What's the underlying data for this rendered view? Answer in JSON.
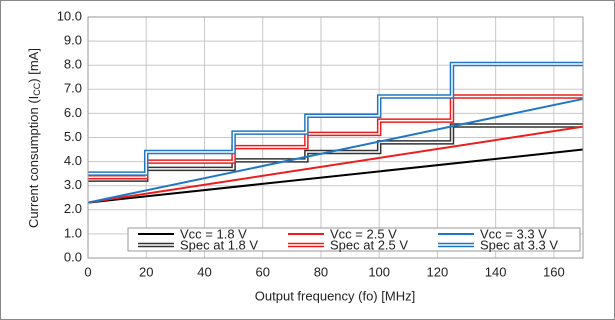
{
  "chart_data": {
    "type": "line",
    "xlabel": "Output frequency (fo) [MHz]",
    "ylabel": {
      "text": "Current consumption (I",
      "sub": "CC",
      "tail": ") [mA]"
    },
    "xlim": [
      0,
      170
    ],
    "xticks": [
      0,
      20,
      40,
      60,
      80,
      100,
      120,
      140,
      160
    ],
    "ylim": [
      0,
      10
    ],
    "yticks": [
      {
        "value": 0,
        "label": "0.0"
      },
      {
        "value": 1,
        "label": "1.0"
      },
      {
        "value": 2,
        "label": "2.0"
      },
      {
        "value": 3,
        "label": "3.0"
      },
      {
        "value": 4,
        "label": "4.0"
      },
      {
        "value": 5,
        "label": "5.0"
      },
      {
        "value": 6,
        "label": "6.0"
      },
      {
        "value": 7,
        "label": "7.0"
      },
      {
        "value": 8,
        "label": "8.0"
      },
      {
        "value": 9,
        "label": "9.0"
      },
      {
        "value": 10,
        "label": "10.0"
      }
    ],
    "grid": true,
    "legend": "bottom",
    "series": [
      {
        "name": "Vcc = 1.8 V",
        "color": "#000000",
        "style": "solid",
        "x": [
          0,
          170
        ],
        "values": [
          2.3,
          4.5
        ]
      },
      {
        "name": "Vcc = 2.5 V",
        "color": "#ee1c1c",
        "style": "solid",
        "x": [
          0,
          170
        ],
        "values": [
          2.3,
          5.45
        ]
      },
      {
        "name": "Vcc = 3.3 V",
        "color": "#1f77c4",
        "style": "solid",
        "x": [
          0,
          170
        ],
        "values": [
          2.3,
          6.6
        ]
      },
      {
        "name": "Spec at 1.8 V",
        "color": "#333333",
        "style": "double-step",
        "x": [
          0,
          20,
          50,
          75,
          100,
          125,
          170
        ],
        "values": [
          3.25,
          3.7,
          4.05,
          4.4,
          4.8,
          5.5,
          5.5
        ]
      },
      {
        "name": "Spec at 2.5 V",
        "color": "#ee1c1c",
        "style": "double-step",
        "x": [
          0,
          20,
          50,
          75,
          100,
          125,
          170
        ],
        "values": [
          3.35,
          4.0,
          4.6,
          5.15,
          5.7,
          6.7,
          6.7
        ]
      },
      {
        "name": "Spec at 3.3 V",
        "color": "#1f77c4",
        "style": "double-step",
        "x": [
          0,
          20,
          50,
          75,
          100,
          125,
          170
        ],
        "values": [
          3.5,
          4.4,
          5.2,
          5.9,
          6.7,
          8.05,
          8.05
        ]
      }
    ]
  }
}
